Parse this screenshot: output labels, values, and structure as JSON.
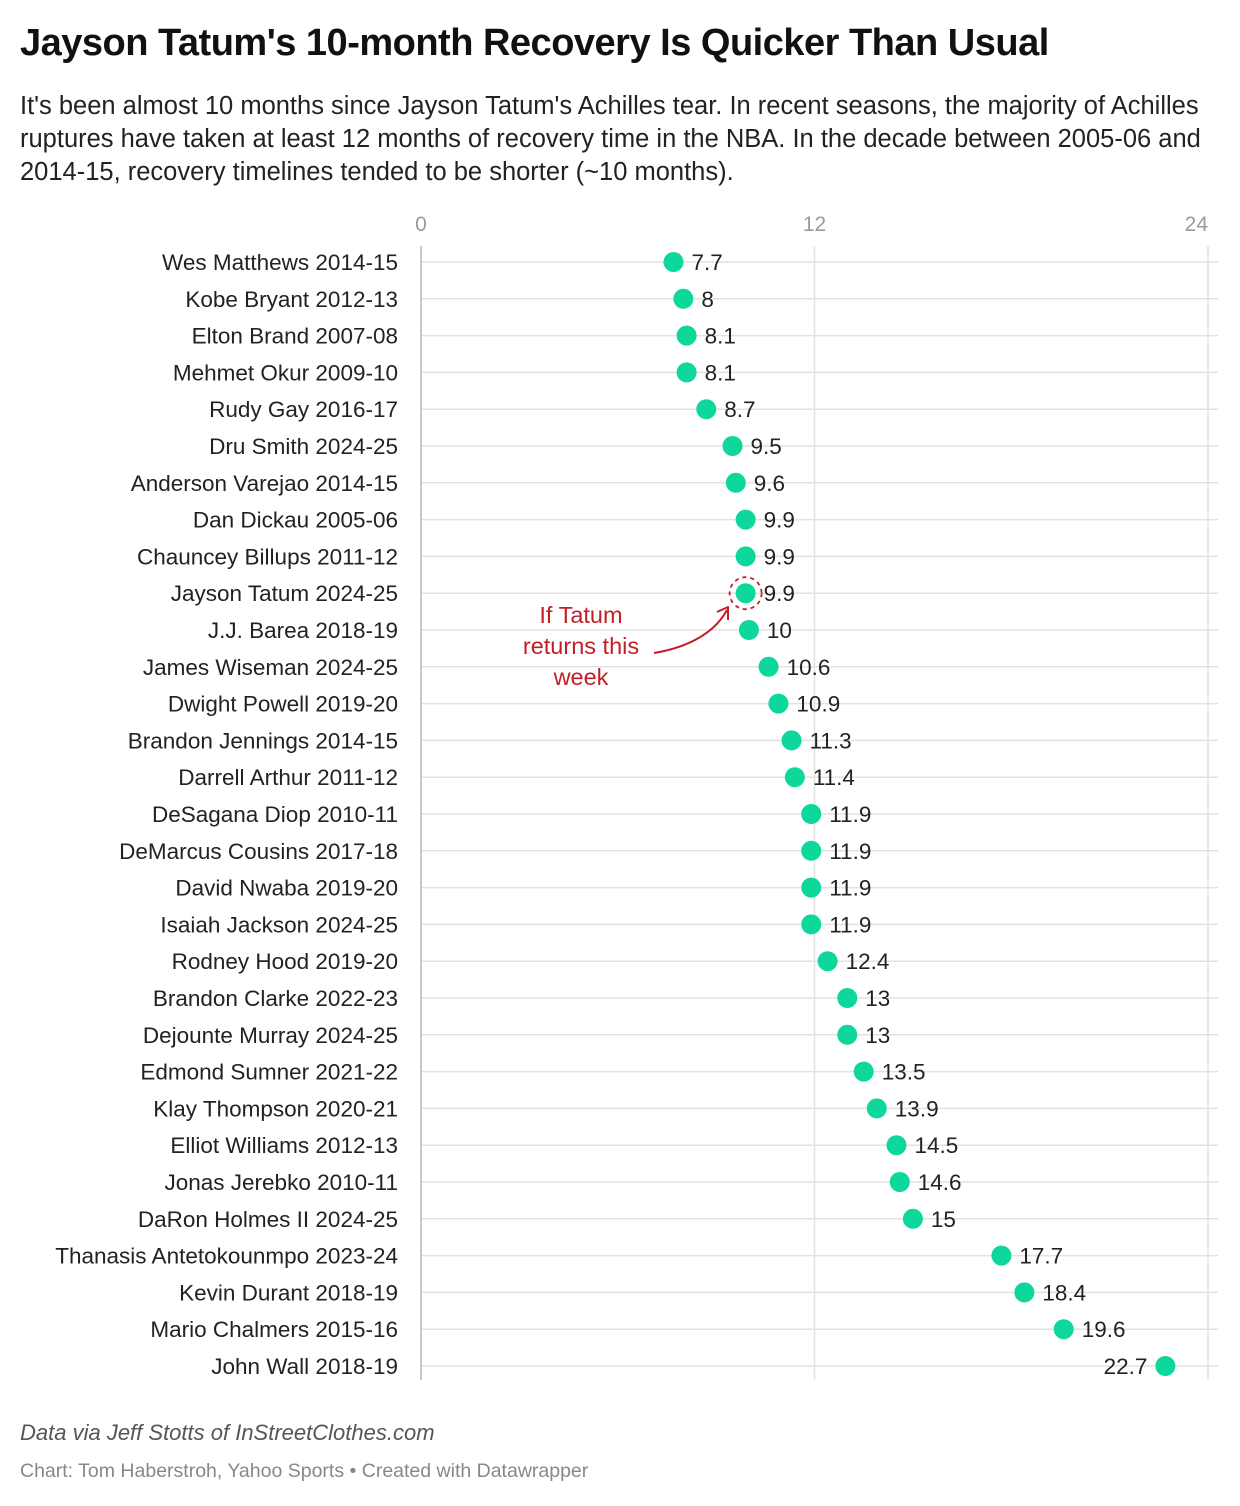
{
  "title": "Jayson Tatum's 10-month Recovery Is Quicker Than Usual",
  "subtitle": "It's been almost 10 months since Jayson Tatum's Achilles tear. In recent seasons, the majority of Achilles ruptures have taken at least 12 months of recovery time in the NBA. In the decade between 2005-06 and 2014-15, recovery timelines tended to be shorter (~10 months).",
  "source": "Data via Jeff Stotts of InStreetClothes.com",
  "credit": "Chart: Tom Haberstroh, Yahoo Sports • Created with Datawrapper",
  "colors": {
    "dot": "#0ed79c",
    "annotation": "#c21e25",
    "grid": "#e2e2e2",
    "axis": "#c8c8c8",
    "tick": "#9b9b9b"
  },
  "chart_data": {
    "type": "scatter",
    "orientation": "horizontal dot plot",
    "xlim": [
      0,
      24
    ],
    "xticks": [
      0,
      12,
      24
    ],
    "xtick_labels": [
      "0",
      "12",
      "24"
    ],
    "categories": [
      "Wes Matthews 2014-15",
      "Kobe Bryant 2012-13",
      "Elton Brand 2007-08",
      "Mehmet Okur 2009-10",
      "Rudy Gay 2016-17",
      "Dru Smith 2024-25",
      "Anderson Varejao 2014-15",
      "Dan Dickau 2005-06",
      "Chauncey Billups 2011-12",
      "Jayson Tatum 2024-25",
      "J.J. Barea 2018-19",
      "James Wiseman 2024-25",
      "Dwight Powell 2019-20",
      "Brandon Jennings 2014-15",
      "Darrell Arthur 2011-12",
      "DeSagana Diop 2010-11",
      "DeMarcus Cousins 2017-18",
      "David Nwaba 2019-20",
      "Isaiah Jackson 2024-25",
      "Rodney Hood 2019-20",
      "Brandon Clarke 2022-23",
      "Dejounte Murray 2024-25",
      "Edmond Sumner 2021-22",
      "Klay Thompson 2020-21",
      "Elliot Williams 2012-13",
      "Jonas Jerebko 2010-11",
      "DaRon Holmes II 2024-25",
      "Thanasis Antetokounmpo 2023-24",
      "Kevin Durant 2018-19",
      "Mario Chalmers 2015-16",
      "John Wall 2018-19"
    ],
    "values": [
      7.7,
      8,
      8.1,
      8.1,
      8.7,
      9.5,
      9.6,
      9.9,
      9.9,
      9.9,
      10,
      10.6,
      10.9,
      11.3,
      11.4,
      11.9,
      11.9,
      11.9,
      11.9,
      12.4,
      13,
      13,
      13.5,
      13.9,
      14.5,
      14.6,
      15,
      17.7,
      18.4,
      19.6,
      22.7
    ],
    "value_labels": [
      "7.7",
      "8",
      "8.1",
      "8.1",
      "8.7",
      "9.5",
      "9.6",
      "9.9",
      "9.9",
      "9.9",
      "10",
      "10.6",
      "10.9",
      "11.3",
      "11.4",
      "11.9",
      "11.9",
      "11.9",
      "11.9",
      "12.4",
      "13",
      "13",
      "13.5",
      "13.9",
      "14.5",
      "14.6",
      "15",
      "17.7",
      "18.4",
      "19.6",
      "22.7"
    ],
    "xlabel": "",
    "ylabel": "",
    "highlight_index": 9,
    "annotation": {
      "lines": [
        "If Tatum",
        "returns this",
        "week"
      ]
    }
  }
}
